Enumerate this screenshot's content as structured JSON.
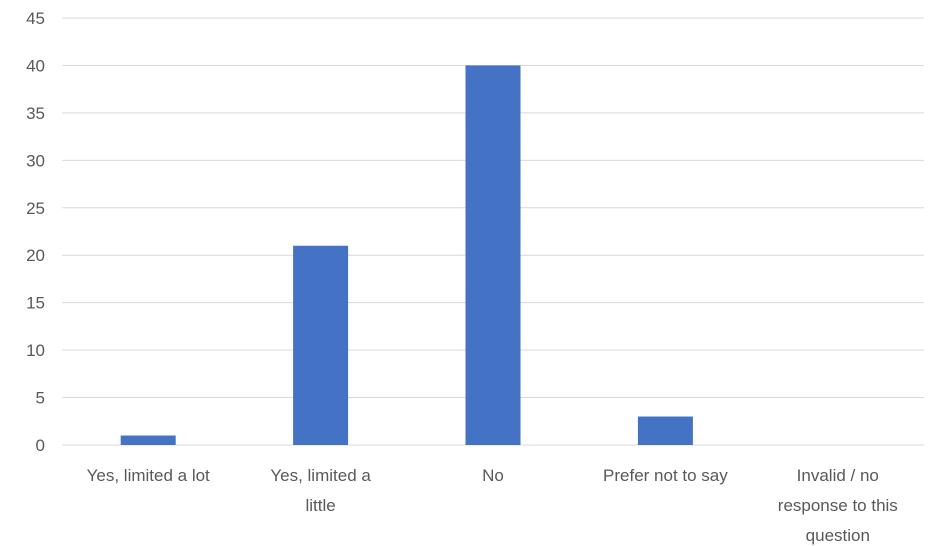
{
  "chart_data": {
    "type": "bar",
    "categories": [
      [
        "Yes, limited a lot"
      ],
      [
        "Yes, limited a",
        "little"
      ],
      [
        "No"
      ],
      [
        "Prefer not to say"
      ],
      [
        "Invalid / no",
        "response to this",
        "question"
      ]
    ],
    "values": [
      1,
      21,
      40,
      3,
      0
    ],
    "yticks": [
      "0",
      "5",
      "10",
      "15",
      "20",
      "25",
      "30",
      "35",
      "40",
      "45"
    ],
    "ylim": [
      0,
      45
    ],
    "grid": true,
    "bar_color": "#4472C4",
    "title": "",
    "xlabel": "",
    "ylabel": ""
  }
}
